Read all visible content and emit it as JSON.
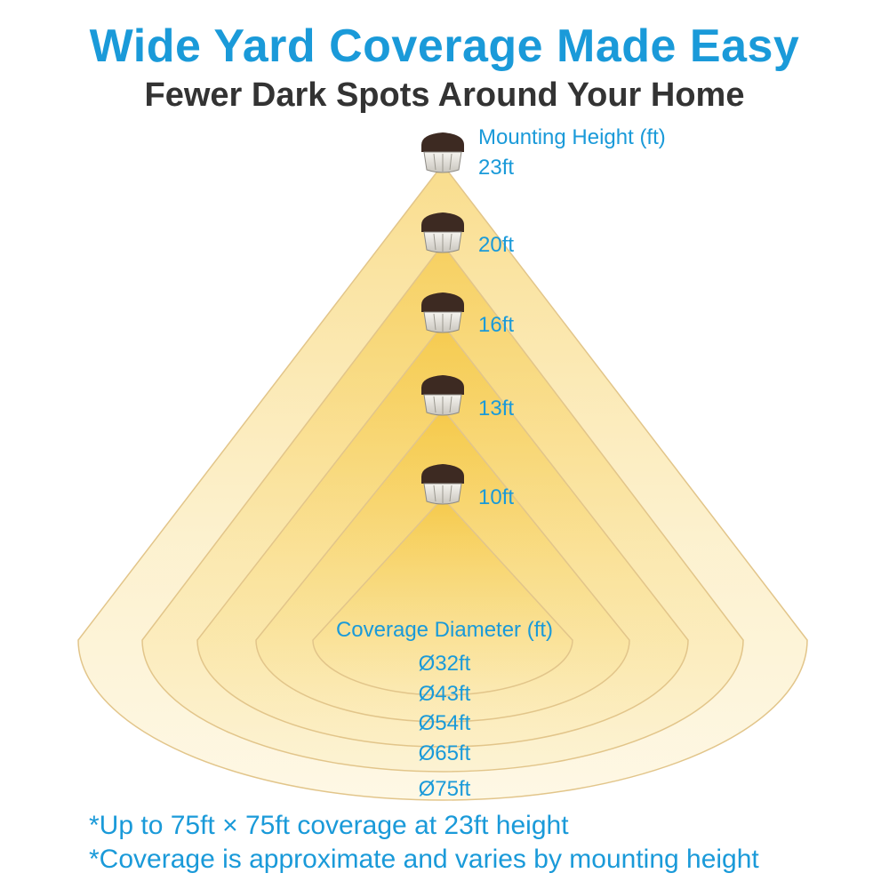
{
  "header": {
    "title": "Wide Yard Coverage Made Easy",
    "subtitle": "Fewer Dark Spots Around Your Home"
  },
  "mounting": {
    "label": "Mounting Height (ft)",
    "heights": [
      "23ft",
      "20ft",
      "16ft",
      "13ft",
      "10ft"
    ]
  },
  "coverage": {
    "label": "Coverage Diameter (ft)",
    "diameters": [
      "Ø32ft",
      "Ø43ft",
      "Ø54ft",
      "Ø65ft",
      "Ø75ft"
    ]
  },
  "notes": [
    "*Up to 75ft × 75ft coverage at 23ft height",
    "*Coverage is approximate and varies by mounting height"
  ],
  "colors": {
    "accent": "#1a9ad9",
    "light_cone": "#f7cf4f",
    "fixture": "#3d2a22"
  }
}
